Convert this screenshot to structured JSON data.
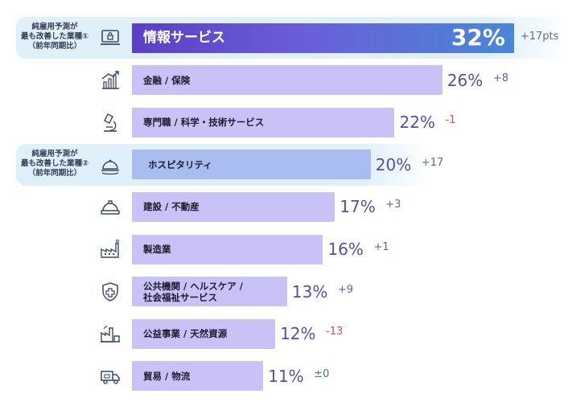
{
  "chart_data": {
    "type": "bar",
    "orientation": "horizontal",
    "categories": [
      "情報サービス",
      "金融 / 保険",
      "専門職 / 科学・技術サービス",
      "ホスピタリティ",
      "建設 / 不動産",
      "製造業",
      "公共機関 / ヘルスケア / 社会福祉サービス",
      "公益事業 / 天然資源",
      "貿易 / 物流"
    ],
    "values": [
      32,
      26,
      22,
      20,
      17,
      16,
      13,
      12,
      11
    ],
    "value_labels": [
      "32%",
      "26%",
      "22%",
      "20%",
      "17%",
      "16%",
      "13%",
      "12%",
      "11%"
    ],
    "changes": [
      "+17pts",
      "+8",
      "-1",
      "+17",
      "+3",
      "+1",
      "+9",
      "-13",
      "±0"
    ],
    "label_lines": [
      [
        "情報サービス"
      ],
      [
        "金融 / 保険"
      ],
      [
        "専門職 / 科学・技術サービス"
      ],
      [
        "ホスピタリティ"
      ],
      [
        "建設 / 不動産"
      ],
      [
        "製造業"
      ],
      [
        "公共機関 / ヘルスケア /",
        "社会福祉サービス"
      ],
      [
        "公益事業 / 天然資源"
      ],
      [
        "貿易 / 物流"
      ]
    ],
    "icons": [
      "laptop-lock-icon",
      "growth-chart-icon",
      "microscope-icon",
      "cloche-icon",
      "hard-hat-icon",
      "factory-icon",
      "medical-shield-icon",
      "power-plant-icon",
      "delivery-truck-icon"
    ],
    "highlights": [
      {
        "row": 0,
        "lines": [
          "純雇用予測が",
          "最も改善した業種①",
          "（前年同期比）"
        ]
      },
      {
        "row": 3,
        "lines": [
          "純雇用予測が",
          "最も改善した業種②",
          "（前年同期比）"
        ]
      }
    ],
    "colors": {
      "bar": "#c9c2f7",
      "top_bar_start": "#5b3fc4",
      "top_bar_end": "#4a86d8",
      "highlight_bar": "#a9bdf0",
      "highlight_band": "#dff0fb",
      "positive_change": "#5a6aa0",
      "negative_change": "#d24a5a",
      "value_text": "#5a4bb0",
      "icon": "#3a4a6a"
    }
  }
}
